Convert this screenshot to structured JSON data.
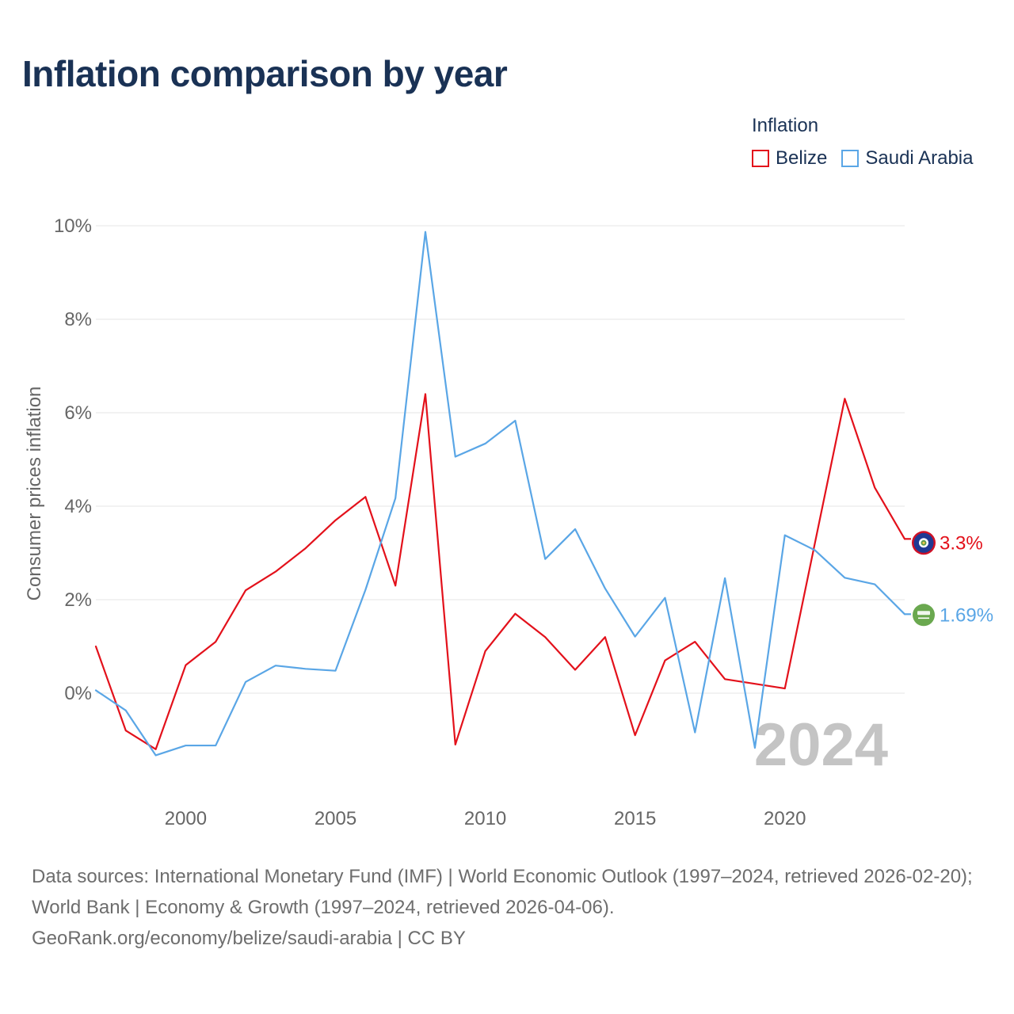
{
  "title": "Inflation comparison by year",
  "legend": {
    "title": "Inflation",
    "items": [
      {
        "label": "Belize",
        "color": "#e3111b"
      },
      {
        "label": "Saudi Arabia",
        "color": "#5aa6e6"
      }
    ]
  },
  "watermark_year": "2024",
  "footer": {
    "sources": "Data sources: International Monetary Fund (IMF) | World Economic Outlook (1997–2024, retrieved 2026-02-20); World Bank | Economy & Growth (1997–2024, retrieved 2026-04-06).",
    "credit": "GeoRank.org/economy/belize/saudi-arabia | CC BY"
  },
  "chart_data": {
    "type": "line",
    "title": "Inflation comparison by year",
    "xlabel": "",
    "ylabel": "Consumer prices inflation",
    "x": [
      1997,
      1998,
      1999,
      2000,
      2001,
      2002,
      2003,
      2004,
      2005,
      2006,
      2007,
      2008,
      2009,
      2010,
      2011,
      2012,
      2013,
      2014,
      2015,
      2016,
      2017,
      2018,
      2019,
      2020,
      2021,
      2022,
      2023,
      2024
    ],
    "xlim": [
      1995.9,
      2024.4
    ],
    "ylim": [
      -2.2,
      10
    ],
    "x_ticks": [
      2000,
      2005,
      2010,
      2015,
      2020
    ],
    "y_ticks": [
      0,
      2,
      4,
      6,
      8,
      10
    ],
    "y_tick_labels": [
      "0%",
      "2%",
      "4%",
      "6%",
      "8%",
      "10%"
    ],
    "grid": true,
    "legend_position": "top-right",
    "series": [
      {
        "name": "Belize",
        "color": "#e3111b",
        "end_label": "3.3%",
        "values": [
          1.0,
          -0.8,
          -1.2,
          0.6,
          1.1,
          2.2,
          2.6,
          3.1,
          3.7,
          4.2,
          2.3,
          6.4,
          -1.1,
          0.9,
          1.7,
          1.2,
          0.5,
          1.2,
          -0.9,
          0.7,
          1.1,
          0.3,
          0.2,
          0.1,
          3.2,
          6.3,
          4.4,
          3.3
        ]
      },
      {
        "name": "Saudi Arabia",
        "color": "#5aa6e6",
        "end_label": "1.69%",
        "values": [
          0.06,
          -0.37,
          -1.33,
          -1.12,
          -1.12,
          0.24,
          0.59,
          0.52,
          0.48,
          2.21,
          4.17,
          9.87,
          5.06,
          5.34,
          5.83,
          2.87,
          3.51,
          2.24,
          1.21,
          2.04,
          -0.84,
          2.46,
          -1.17,
          3.38,
          3.06,
          2.47,
          2.33,
          1.69
        ]
      }
    ]
  }
}
